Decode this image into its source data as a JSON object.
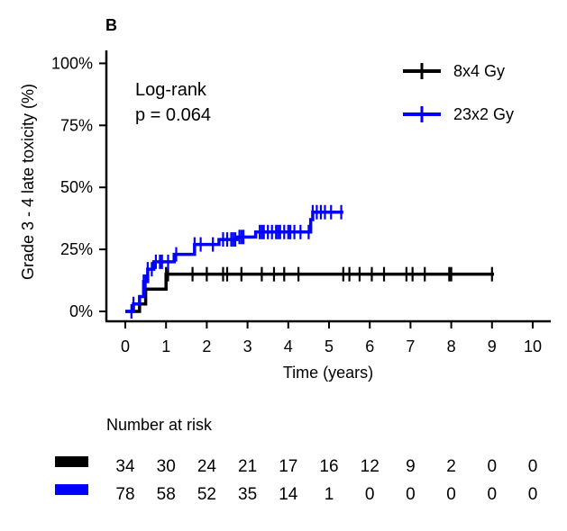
{
  "panel_label": "B",
  "chart_data": {
    "type": "line",
    "subtype": "kaplan-meier cumulative incidence (step)",
    "title": "",
    "xlabel": "Time (years)",
    "ylabel": "Grade 3 - 4 late toxicity (%)",
    "xlim": [
      0,
      10
    ],
    "ylim": [
      0,
      100
    ],
    "x_ticks": [
      0,
      1,
      2,
      3,
      4,
      5,
      6,
      7,
      8,
      9,
      10
    ],
    "y_ticks": [
      0,
      25,
      50,
      75,
      100
    ],
    "y_tick_labels": [
      "0%",
      "25%",
      "50%",
      "75%",
      "100%"
    ],
    "grid": false,
    "legend_position": "top-right",
    "annotation": {
      "line1": "Log-rank",
      "line2": "p = 0.064"
    },
    "series": [
      {
        "name": "8x4 Gy",
        "color": "#000000",
        "steps": [
          [
            0,
            0
          ],
          [
            0.35,
            3
          ],
          [
            0.5,
            9
          ],
          [
            1.0,
            15
          ],
          [
            9.05,
            15
          ]
        ],
        "censor_times": [
          1.0,
          1.05,
          1.65,
          2.0,
          2.4,
          2.5,
          2.85,
          3.35,
          3.65,
          3.9,
          4.25,
          5.35,
          5.5,
          5.75,
          6.05,
          6.35,
          6.9,
          7.05,
          7.35,
          7.95,
          8.0,
          9.0
        ]
      },
      {
        "name": "23x2 Gy",
        "color": "#0000ff",
        "steps": [
          [
            0,
            0
          ],
          [
            0.2,
            3
          ],
          [
            0.35,
            6
          ],
          [
            0.45,
            12
          ],
          [
            0.55,
            17
          ],
          [
            0.7,
            20
          ],
          [
            1.2,
            23
          ],
          [
            1.7,
            27
          ],
          [
            2.3,
            29
          ],
          [
            2.75,
            30
          ],
          [
            3.2,
            32
          ],
          [
            4.55,
            37
          ],
          [
            4.6,
            40
          ],
          [
            5.35,
            40
          ]
        ],
        "censor_times": [
          0.15,
          0.2,
          0.45,
          0.5,
          0.55,
          0.65,
          0.75,
          0.85,
          0.9,
          1.05,
          1.25,
          1.7,
          1.85,
          2.15,
          2.4,
          2.5,
          2.6,
          2.65,
          2.7,
          2.8,
          2.85,
          2.9,
          3.3,
          3.35,
          3.4,
          3.5,
          3.6,
          3.7,
          3.75,
          3.8,
          3.9,
          4.0,
          4.05,
          4.15,
          4.3,
          4.5,
          4.6,
          4.7,
          4.8,
          4.9,
          5.05,
          5.3
        ]
      }
    ]
  },
  "risk_table": {
    "title": "Number at risk",
    "rows": [
      {
        "color": "#000000",
        "values": [
          "34",
          "30",
          "24",
          "21",
          "17",
          "16",
          "12",
          "9",
          "2",
          "0",
          "0"
        ]
      },
      {
        "color": "#0000ff",
        "values": [
          "78",
          "58",
          "52",
          "35",
          "14",
          "1",
          "0",
          "0",
          "0",
          "0",
          "0"
        ]
      }
    ]
  }
}
